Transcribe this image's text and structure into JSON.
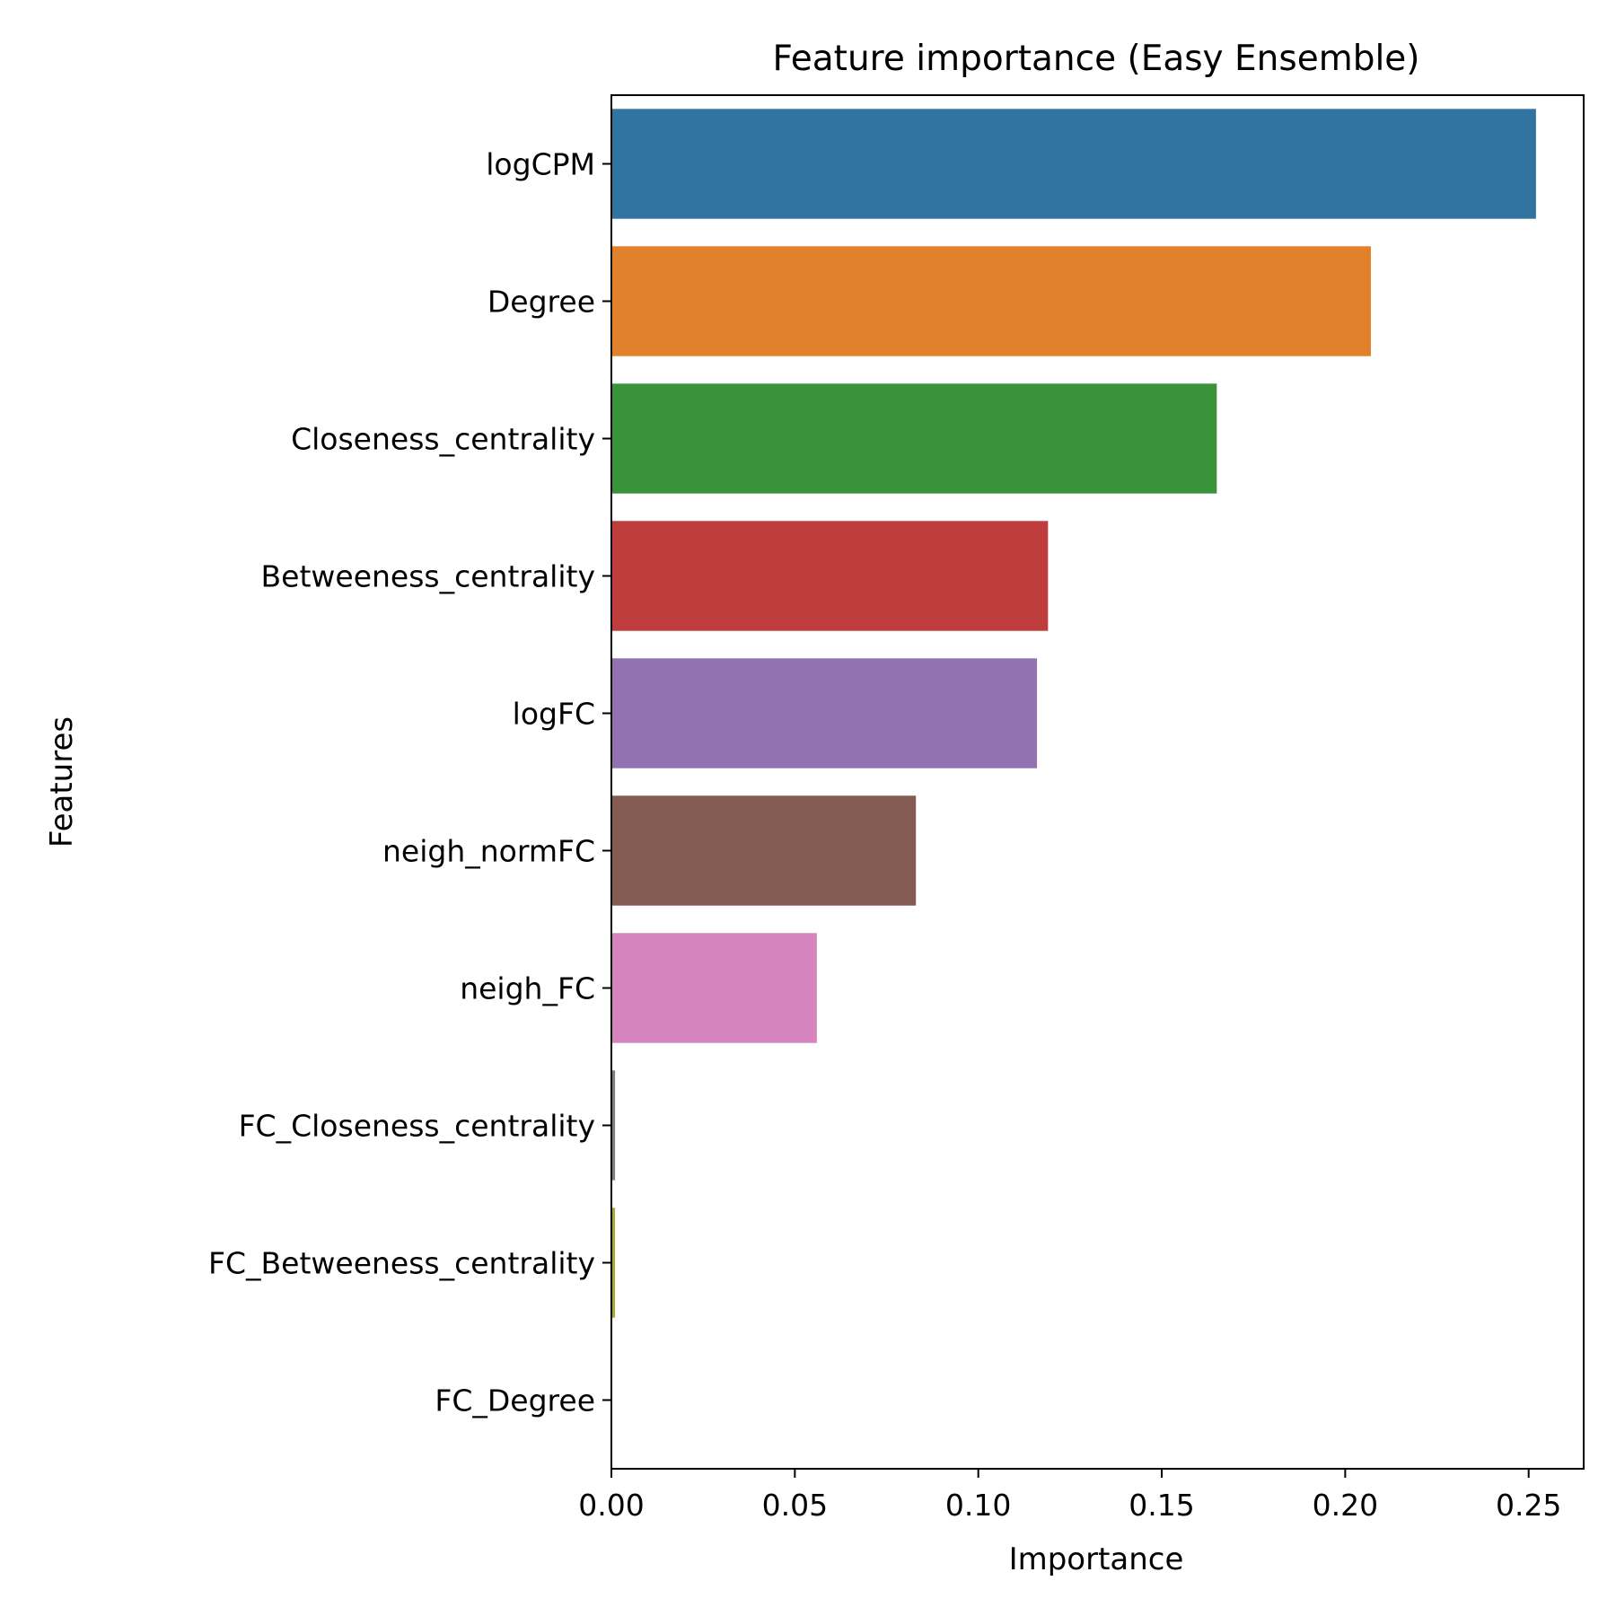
{
  "chart_data": {
    "type": "bar",
    "orientation": "horizontal",
    "title": "Feature importance (Easy Ensemble)",
    "xlabel": "Importance",
    "ylabel": "Features",
    "categories": [
      "logCPM",
      "Degree",
      "Closeness_centrality",
      "Betweeness_centrality",
      "logFC",
      "neigh_normFC",
      "neigh_FC",
      "FC_Closeness_centrality",
      "FC_Betweeness_centrality",
      "FC_Degree"
    ],
    "values": [
      0.252,
      0.207,
      0.165,
      0.119,
      0.116,
      0.083,
      0.056,
      0.001,
      0.001,
      0.0
    ],
    "colors": [
      "#3274a1",
      "#e1812c",
      "#3a923a",
      "#c03d3e",
      "#9372b2",
      "#845b53",
      "#d684bd",
      "#7f7f7f",
      "#a9aa35",
      "#2ebece"
    ],
    "xticks": [
      0.0,
      0.05,
      0.1,
      0.15,
      0.2,
      0.25
    ],
    "xtick_labels": [
      "0.00",
      "0.05",
      "0.10",
      "0.15",
      "0.20",
      "0.25"
    ],
    "xlim": [
      0,
      0.265
    ],
    "grid": false,
    "legend": "none"
  }
}
